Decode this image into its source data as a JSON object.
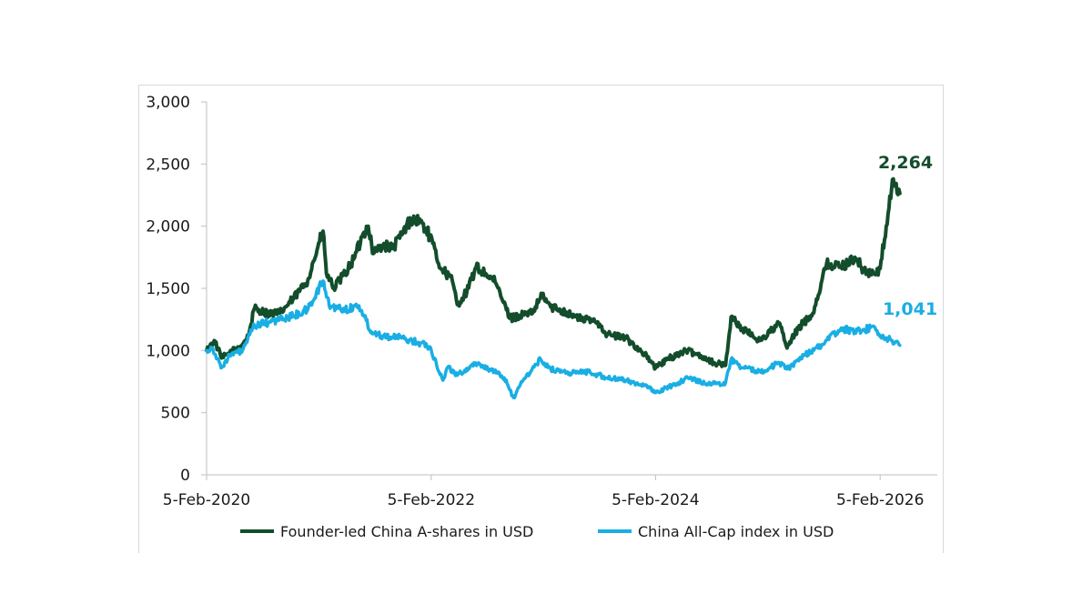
{
  "chart_data": {
    "type": "line",
    "title": "",
    "xlabel": "",
    "ylabel": "",
    "ylim": [
      0,
      3000
    ],
    "yticks": [
      0,
      500,
      1000,
      1500,
      2000,
      2500,
      3000
    ],
    "ytick_labels": [
      "0",
      "500",
      "1,000",
      "1,500",
      "2,000",
      "2,500",
      "3,000"
    ],
    "xlim": [
      "2020-02-05",
      "2026-08-10"
    ],
    "xtick_labels": [
      "5-Feb-2020",
      "5-Feb-2022",
      "5-Feb-2024",
      "5-Feb-2026"
    ],
    "xtick_dates": [
      "2020-02-05",
      "2022-02-05",
      "2024-02-05",
      "2026-02-05"
    ],
    "grid": false,
    "legend_position": "bottom",
    "series": [
      {
        "name": "Founder-led China A-shares in USD",
        "color": "#134d2b",
        "end_label": "2,264",
        "points": [
          [
            "2020-02-05",
            1000
          ],
          [
            "2020-03-01",
            1080
          ],
          [
            "2020-03-25",
            940
          ],
          [
            "2020-04-20",
            980
          ],
          [
            "2020-06-01",
            1050
          ],
          [
            "2020-06-20",
            1120
          ],
          [
            "2020-07-10",
            1340
          ],
          [
            "2020-08-20",
            1300
          ],
          [
            "2020-09-30",
            1300
          ],
          [
            "2020-11-15",
            1420
          ],
          [
            "2020-12-31",
            1570
          ],
          [
            "2021-02-01",
            1830
          ],
          [
            "2021-02-18",
            1960
          ],
          [
            "2021-03-01",
            1620
          ],
          [
            "2021-03-25",
            1500
          ],
          [
            "2021-05-01",
            1620
          ],
          [
            "2021-06-01",
            1750
          ],
          [
            "2021-07-01",
            1950
          ],
          [
            "2021-07-15",
            2000
          ],
          [
            "2021-08-01",
            1780
          ],
          [
            "2021-09-01",
            1850
          ],
          [
            "2021-10-01",
            1820
          ],
          [
            "2021-11-01",
            1930
          ],
          [
            "2021-12-01",
            2060
          ],
          [
            "2022-01-01",
            2040
          ],
          [
            "2022-02-01",
            1920
          ],
          [
            "2022-03-01",
            1700
          ],
          [
            "2022-04-15",
            1560
          ],
          [
            "2022-05-01",
            1370
          ],
          [
            "2022-06-01",
            1470
          ],
          [
            "2022-07-01",
            1670
          ],
          [
            "2022-08-01",
            1620
          ],
          [
            "2022-09-01",
            1550
          ],
          [
            "2022-10-20",
            1260
          ],
          [
            "2022-12-01",
            1290
          ],
          [
            "2023-01-01",
            1300
          ],
          [
            "2023-02-01",
            1450
          ],
          [
            "2023-03-01",
            1350
          ],
          [
            "2023-04-01",
            1330
          ],
          [
            "2023-06-01",
            1260
          ],
          [
            "2023-08-01",
            1230
          ],
          [
            "2023-09-01",
            1130
          ],
          [
            "2023-11-01",
            1100
          ],
          [
            "2024-01-01",
            970
          ],
          [
            "2024-02-05",
            860
          ],
          [
            "2024-03-15",
            930
          ],
          [
            "2024-05-15",
            1000
          ],
          [
            "2024-07-01",
            960
          ],
          [
            "2024-08-15",
            900
          ],
          [
            "2024-09-20",
            880
          ],
          [
            "2024-10-08",
            1270
          ],
          [
            "2024-11-15",
            1170
          ],
          [
            "2025-01-10",
            1080
          ],
          [
            "2025-03-15",
            1220
          ],
          [
            "2025-04-08",
            1020
          ],
          [
            "2025-05-15",
            1180
          ],
          [
            "2025-07-01",
            1300
          ],
          [
            "2025-08-15",
            1700
          ],
          [
            "2025-10-01",
            1670
          ],
          [
            "2025-11-15",
            1750
          ],
          [
            "2025-12-15",
            1640
          ],
          [
            "2026-01-20",
            1610
          ],
          [
            "2026-02-05",
            1660
          ],
          [
            "2026-02-25",
            2000
          ],
          [
            "2026-03-20",
            2380
          ],
          [
            "2026-04-10",
            2264
          ]
        ]
      },
      {
        "name": "China All-Cap index in USD",
        "color": "#19aee4",
        "end_label": "1,041",
        "points": [
          [
            "2020-02-05",
            1000
          ],
          [
            "2020-02-25",
            1020
          ],
          [
            "2020-03-23",
            860
          ],
          [
            "2020-04-20",
            960
          ],
          [
            "2020-06-01",
            1000
          ],
          [
            "2020-07-10",
            1200
          ],
          [
            "2020-09-01",
            1230
          ],
          [
            "2020-11-15",
            1280
          ],
          [
            "2020-12-31",
            1330
          ],
          [
            "2021-02-18",
            1560
          ],
          [
            "2021-03-10",
            1360
          ],
          [
            "2021-05-01",
            1330
          ],
          [
            "2021-06-15",
            1360
          ],
          [
            "2021-07-26",
            1150
          ],
          [
            "2021-09-01",
            1120
          ],
          [
            "2021-11-01",
            1100
          ],
          [
            "2022-01-01",
            1060
          ],
          [
            "2022-02-01",
            1030
          ],
          [
            "2022-03-15",
            760
          ],
          [
            "2022-04-01",
            870
          ],
          [
            "2022-05-01",
            800
          ],
          [
            "2022-06-30",
            900
          ],
          [
            "2022-08-15",
            850
          ],
          [
            "2022-10-01",
            780
          ],
          [
            "2022-10-31",
            620
          ],
          [
            "2022-12-01",
            760
          ],
          [
            "2023-01-27",
            930
          ],
          [
            "2023-03-01",
            850
          ],
          [
            "2023-05-01",
            820
          ],
          [
            "2023-07-01",
            830
          ],
          [
            "2023-09-01",
            780
          ],
          [
            "2023-11-01",
            760
          ],
          [
            "2024-01-01",
            720
          ],
          [
            "2024-02-05",
            660
          ],
          [
            "2024-04-01",
            720
          ],
          [
            "2024-05-20",
            780
          ],
          [
            "2024-08-01",
            730
          ],
          [
            "2024-09-20",
            740
          ],
          [
            "2024-10-08",
            930
          ],
          [
            "2024-11-15",
            860
          ],
          [
            "2025-01-10",
            830
          ],
          [
            "2025-03-15",
            900
          ],
          [
            "2025-04-08",
            850
          ],
          [
            "2025-06-01",
            960
          ],
          [
            "2025-08-01",
            1050
          ],
          [
            "2025-10-01",
            1180
          ],
          [
            "2025-11-15",
            1150
          ],
          [
            "2025-12-15",
            1170
          ],
          [
            "2026-01-20",
            1180
          ],
          [
            "2026-02-10",
            1100
          ],
          [
            "2026-03-10",
            1090
          ],
          [
            "2026-04-10",
            1041
          ]
        ]
      }
    ]
  }
}
